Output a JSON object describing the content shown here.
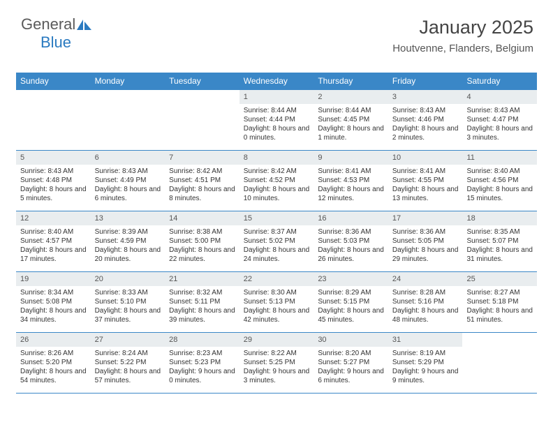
{
  "brand": {
    "part1": "General",
    "part2": "Blue"
  },
  "title": "January 2025",
  "location": "Houtvenne, Flanders, Belgium",
  "colors": {
    "header_bg": "#3a87c7",
    "header_text": "#ffffff",
    "daynum_bg": "#e9edef",
    "body_text": "#333333",
    "rule": "#3a87c7",
    "brand_gray": "#5a5a5a",
    "brand_blue": "#2a7ac0",
    "page_bg": "#ffffff"
  },
  "day_headers": [
    "Sunday",
    "Monday",
    "Tuesday",
    "Wednesday",
    "Thursday",
    "Friday",
    "Saturday"
  ],
  "weeks": [
    [
      {
        "empty": true
      },
      {
        "empty": true
      },
      {
        "empty": true
      },
      {
        "n": "1",
        "sunrise": "8:44 AM",
        "sunset": "4:44 PM",
        "daylight": "8 hours and 0 minutes."
      },
      {
        "n": "2",
        "sunrise": "8:44 AM",
        "sunset": "4:45 PM",
        "daylight": "8 hours and 1 minute."
      },
      {
        "n": "3",
        "sunrise": "8:43 AM",
        "sunset": "4:46 PM",
        "daylight": "8 hours and 2 minutes."
      },
      {
        "n": "4",
        "sunrise": "8:43 AM",
        "sunset": "4:47 PM",
        "daylight": "8 hours and 3 minutes."
      }
    ],
    [
      {
        "n": "5",
        "sunrise": "8:43 AM",
        "sunset": "4:48 PM",
        "daylight": "8 hours and 5 minutes."
      },
      {
        "n": "6",
        "sunrise": "8:43 AM",
        "sunset": "4:49 PM",
        "daylight": "8 hours and 6 minutes."
      },
      {
        "n": "7",
        "sunrise": "8:42 AM",
        "sunset": "4:51 PM",
        "daylight": "8 hours and 8 minutes."
      },
      {
        "n": "8",
        "sunrise": "8:42 AM",
        "sunset": "4:52 PM",
        "daylight": "8 hours and 10 minutes."
      },
      {
        "n": "9",
        "sunrise": "8:41 AM",
        "sunset": "4:53 PM",
        "daylight": "8 hours and 12 minutes."
      },
      {
        "n": "10",
        "sunrise": "8:41 AM",
        "sunset": "4:55 PM",
        "daylight": "8 hours and 13 minutes."
      },
      {
        "n": "11",
        "sunrise": "8:40 AM",
        "sunset": "4:56 PM",
        "daylight": "8 hours and 15 minutes."
      }
    ],
    [
      {
        "n": "12",
        "sunrise": "8:40 AM",
        "sunset": "4:57 PM",
        "daylight": "8 hours and 17 minutes."
      },
      {
        "n": "13",
        "sunrise": "8:39 AM",
        "sunset": "4:59 PM",
        "daylight": "8 hours and 20 minutes."
      },
      {
        "n": "14",
        "sunrise": "8:38 AM",
        "sunset": "5:00 PM",
        "daylight": "8 hours and 22 minutes."
      },
      {
        "n": "15",
        "sunrise": "8:37 AM",
        "sunset": "5:02 PM",
        "daylight": "8 hours and 24 minutes."
      },
      {
        "n": "16",
        "sunrise": "8:36 AM",
        "sunset": "5:03 PM",
        "daylight": "8 hours and 26 minutes."
      },
      {
        "n": "17",
        "sunrise": "8:36 AM",
        "sunset": "5:05 PM",
        "daylight": "8 hours and 29 minutes."
      },
      {
        "n": "18",
        "sunrise": "8:35 AM",
        "sunset": "5:07 PM",
        "daylight": "8 hours and 31 minutes."
      }
    ],
    [
      {
        "n": "19",
        "sunrise": "8:34 AM",
        "sunset": "5:08 PM",
        "daylight": "8 hours and 34 minutes."
      },
      {
        "n": "20",
        "sunrise": "8:33 AM",
        "sunset": "5:10 PM",
        "daylight": "8 hours and 37 minutes."
      },
      {
        "n": "21",
        "sunrise": "8:32 AM",
        "sunset": "5:11 PM",
        "daylight": "8 hours and 39 minutes."
      },
      {
        "n": "22",
        "sunrise": "8:30 AM",
        "sunset": "5:13 PM",
        "daylight": "8 hours and 42 minutes."
      },
      {
        "n": "23",
        "sunrise": "8:29 AM",
        "sunset": "5:15 PM",
        "daylight": "8 hours and 45 minutes."
      },
      {
        "n": "24",
        "sunrise": "8:28 AM",
        "sunset": "5:16 PM",
        "daylight": "8 hours and 48 minutes."
      },
      {
        "n": "25",
        "sunrise": "8:27 AM",
        "sunset": "5:18 PM",
        "daylight": "8 hours and 51 minutes."
      }
    ],
    [
      {
        "n": "26",
        "sunrise": "8:26 AM",
        "sunset": "5:20 PM",
        "daylight": "8 hours and 54 minutes."
      },
      {
        "n": "27",
        "sunrise": "8:24 AM",
        "sunset": "5:22 PM",
        "daylight": "8 hours and 57 minutes."
      },
      {
        "n": "28",
        "sunrise": "8:23 AM",
        "sunset": "5:23 PM",
        "daylight": "9 hours and 0 minutes."
      },
      {
        "n": "29",
        "sunrise": "8:22 AM",
        "sunset": "5:25 PM",
        "daylight": "9 hours and 3 minutes."
      },
      {
        "n": "30",
        "sunrise": "8:20 AM",
        "sunset": "5:27 PM",
        "daylight": "9 hours and 6 minutes."
      },
      {
        "n": "31",
        "sunrise": "8:19 AM",
        "sunset": "5:29 PM",
        "daylight": "9 hours and 9 minutes."
      },
      {
        "empty": true
      }
    ]
  ],
  "labels": {
    "sunrise": "Sunrise: ",
    "sunset": "Sunset: ",
    "daylight": "Daylight: "
  }
}
